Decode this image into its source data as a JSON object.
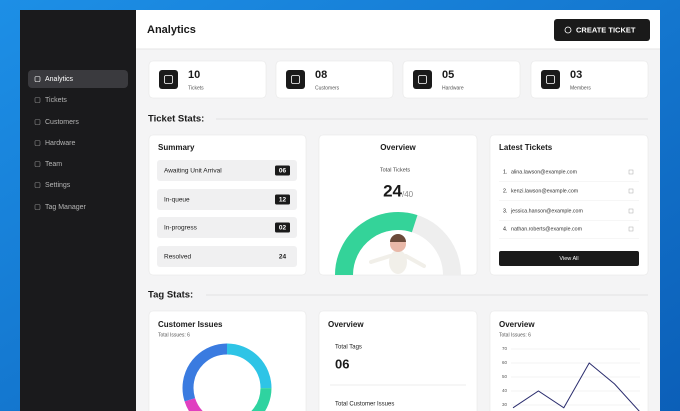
{
  "sidebar": {
    "items": [
      "Analytics",
      "Tickets",
      "Customers",
      "Hardware",
      "Team",
      "Settings",
      "Tag Manager"
    ],
    "active": 0
  },
  "header": {
    "title": "Analytics",
    "button": "CREATE TICKET"
  },
  "stats": [
    {
      "value": "10",
      "label": "Tickets"
    },
    {
      "value": "08",
      "label": "Customers"
    },
    {
      "value": "05",
      "label": "Hardware"
    },
    {
      "value": "03",
      "label": "Members"
    }
  ],
  "ticket_stats": {
    "title": "Ticket Stats:",
    "summary": {
      "title": "Summary",
      "rows": [
        {
          "label": "Awaiting Unit Arrival",
          "value": "06",
          "dark": true
        },
        {
          "label": "In-queue",
          "value": "12",
          "dark": true
        },
        {
          "label": "In-progress",
          "value": "02",
          "dark": true
        },
        {
          "label": "Resolved",
          "value": "24",
          "dark": false
        }
      ]
    },
    "overview": {
      "title": "Overview",
      "subtitle": "Total Tickets",
      "value": 24,
      "max": 40,
      "max_label": "/40",
      "color": "#34d399"
    },
    "latest": {
      "title": "Latest Tickets",
      "items": [
        {
          "index": "1.",
          "email": "alina.lawson@example.com"
        },
        {
          "index": "2.",
          "email": "kenzi.lawson@example.com"
        },
        {
          "index": "3.",
          "email": "jessica.hanson@example.com"
        },
        {
          "index": "4.",
          "email": "nathan.roberts@example.com"
        }
      ],
      "button": "View All"
    }
  },
  "tag_stats": {
    "title": "Tag Stats:",
    "customer_issues": {
      "title": "Customer Issues",
      "subtitle": "Total Issues: 6",
      "segments": [
        {
          "value": 25,
          "color": "#2ec4e6"
        },
        {
          "value": 30,
          "color": "#2fd3a0"
        },
        {
          "value": 15,
          "color": "#e040c0"
        },
        {
          "value": 30,
          "color": "#3a7be0"
        }
      ]
    },
    "overview": {
      "title": "Overview",
      "total_tags_label": "Total Tags",
      "total_tags": "06",
      "total_issues_label": "Total Customer Issues"
    },
    "chart": {
      "type": "line",
      "title": "Overview",
      "subtitle": "Total Issues: 6",
      "ylim": [
        20,
        70
      ],
      "yticks": [
        20,
        30,
        40,
        50,
        60,
        70
      ],
      "color": "#2b2d6e",
      "values": [
        28,
        40,
        28,
        60,
        45,
        25
      ]
    }
  }
}
